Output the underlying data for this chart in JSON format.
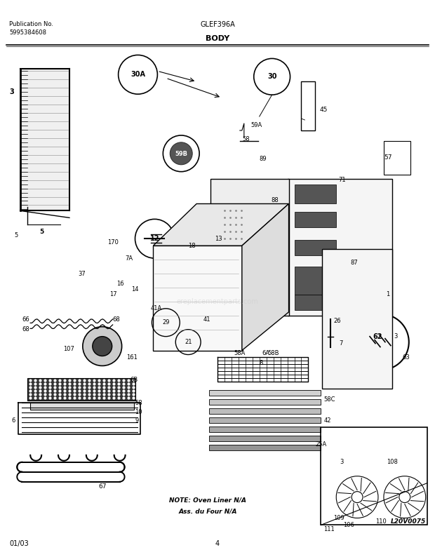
{
  "title_center": "GLEF396A",
  "section_title": "BODY",
  "pub_no_label": "Publication No.",
  "pub_no": "5995384608",
  "date_label": "01/03",
  "page_number": "4",
  "watermark": "L20V0075",
  "note_line1": "NOTE: Oven Liner N/A",
  "note_line2": "Ass. du Four N/A",
  "bg_color": "#ffffff",
  "figsize": [
    6.2,
    7.94
  ],
  "dpi": 100
}
